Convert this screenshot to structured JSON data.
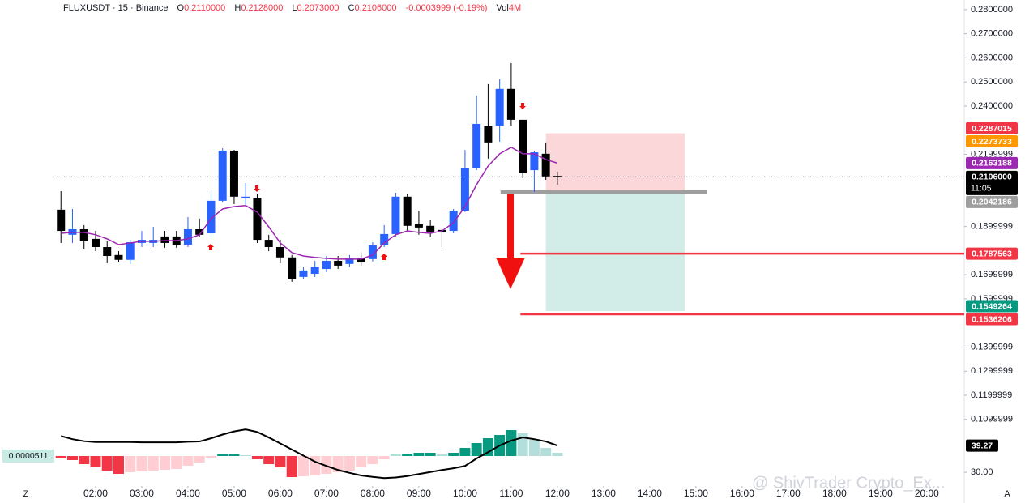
{
  "chart_data": {
    "type": "candlestick",
    "header": {
      "symbol": "FLUXUSDT",
      "sep1": "·",
      "interval": "15",
      "sep2": "·",
      "exchange": "Binance",
      "o_label": "O",
      "o": "0.2110000",
      "h_label": "H",
      "h": "0.2128000",
      "l_label": "L",
      "l": "0.2073000",
      "c_label": "C",
      "c": "0.2106000",
      "change": "-0.0003999 (-0.19%)",
      "vol_label": "Vol",
      "vol": "4M"
    },
    "up_color": "#2962ff",
    "down_color": "#000000",
    "candles": {
      "x": [
        1.25,
        1.5,
        1.75,
        2,
        2.25,
        2.5,
        2.75,
        3,
        3.25,
        3.5,
        3.75,
        4,
        4.25,
        4.5,
        4.75,
        5,
        5.25,
        5.5,
        5.75,
        6,
        6.25,
        6.5,
        6.75,
        7,
        7.25,
        7.5,
        7.75,
        8,
        8.25,
        8.5,
        8.75,
        9,
        9.25,
        9.5,
        9.75,
        10,
        10.25,
        10.5,
        10.75,
        11,
        11.25,
        11.5,
        11.75,
        12
      ],
      "open": [
        0.197,
        0.1866,
        0.1889,
        0.1849,
        0.1815,
        0.1782,
        0.1762,
        0.1832,
        0.1832,
        0.1859,
        0.1859,
        0.1825,
        0.1889,
        0.1872,
        0.2007,
        0.2215,
        0.2017,
        0.202,
        0.1845,
        0.1815,
        0.1772,
        0.1691,
        0.1704,
        0.1724,
        0.1758,
        0.1745,
        0.1768,
        0.1765,
        0.1822,
        0.1869,
        0.2024,
        0.1909,
        0.1903,
        0.1886,
        0.1882,
        0.1966,
        0.2141,
        0.2319,
        0.2319,
        0.2471,
        0.2343,
        0.2134,
        0.2202,
        0.211
      ],
      "high": [
        0.2047,
        0.1973,
        0.1906,
        0.1882,
        0.1839,
        0.1798,
        0.1845,
        0.1882,
        0.1899,
        0.1882,
        0.1882,
        0.1939,
        0.1933,
        0.205,
        0.2225,
        0.2218,
        0.2081,
        0.2034,
        0.1866,
        0.1845,
        0.1782,
        0.1731,
        0.1758,
        0.1778,
        0.1778,
        0.1782,
        0.1792,
        0.1835,
        0.1906,
        0.204,
        0.2034,
        0.1966,
        0.1926,
        0.1889,
        0.1973,
        0.2218,
        0.2444,
        0.2491,
        0.2511,
        0.2578,
        0.2343,
        0.2215,
        0.2249,
        0.2128
      ],
      "low": [
        0.1832,
        0.1832,
        0.1805,
        0.1798,
        0.1748,
        0.1751,
        0.1745,
        0.1815,
        0.1815,
        0.1812,
        0.1812,
        0.1815,
        0.1859,
        0.1859,
        0.2,
        0.1993,
        0.199,
        0.1832,
        0.1798,
        0.1748,
        0.1671,
        0.1684,
        0.1691,
        0.1711,
        0.1724,
        0.1731,
        0.1738,
        0.1755,
        0.1815,
        0.1859,
        0.1882,
        0.1866,
        0.1859,
        0.1815,
        0.1872,
        0.196,
        0.2134,
        0.2182,
        0.2252,
        0.2319,
        0.2101,
        0.2044,
        0.2094,
        0.2073
      ],
      "close": [
        0.1882,
        0.1889,
        0.1839,
        0.1815,
        0.1778,
        0.1762,
        0.1835,
        0.1845,
        0.1845,
        0.1832,
        0.1825,
        0.1889,
        0.1866,
        0.2007,
        0.2215,
        0.2024,
        0.2024,
        0.1845,
        0.1815,
        0.1772,
        0.1681,
        0.1718,
        0.1731,
        0.1758,
        0.1738,
        0.1768,
        0.1751,
        0.1822,
        0.1869,
        0.2024,
        0.1903,
        0.1896,
        0.1879,
        0.1876,
        0.1966,
        0.2141,
        0.2326,
        0.2249,
        0.2471,
        0.2343,
        0.2124,
        0.2208,
        0.2108,
        0.2106
      ]
    },
    "ma": {
      "color": "#9c27b0",
      "values": [
        0.1872,
        0.1876,
        0.1876,
        0.1866,
        0.1849,
        0.1825,
        0.1832,
        0.1839,
        0.1839,
        0.1842,
        0.1842,
        0.1849,
        0.1866,
        0.1933,
        0.1973,
        0.1983,
        0.1987,
        0.196,
        0.1899,
        0.1832,
        0.1792,
        0.1778,
        0.1772,
        0.1768,
        0.1765,
        0.1765,
        0.1765,
        0.1782,
        0.1832,
        0.1866,
        0.1882,
        0.1876,
        0.1872,
        0.1882,
        0.1916,
        0.1983,
        0.2074,
        0.2151,
        0.2202,
        0.2229,
        0.2202,
        0.2202,
        0.2178,
        0.2163188
      ]
    },
    "xlim": [
      -0.07,
      20.81
    ],
    "xticks": [
      {
        "value": 2,
        "label": "02:00"
      },
      {
        "value": 3,
        "label": "03:00"
      },
      {
        "value": 4,
        "label": "04:00"
      },
      {
        "value": 5,
        "label": "05:00"
      },
      {
        "value": 6,
        "label": "06:00"
      },
      {
        "value": 7,
        "label": "07:00"
      },
      {
        "value": 8,
        "label": "08:00"
      },
      {
        "value": 9,
        "label": "09:00"
      },
      {
        "value": 10,
        "label": "10:00"
      },
      {
        "value": 11,
        "label": "11:00"
      },
      {
        "value": 12,
        "label": "12:00"
      },
      {
        "value": 13,
        "label": "13:00"
      },
      {
        "value": 14,
        "label": "14:00"
      },
      {
        "value": 15,
        "label": "15:00"
      },
      {
        "value": 16,
        "label": "16:00"
      },
      {
        "value": 17,
        "label": "17:00"
      },
      {
        "value": 18,
        "label": "18:00"
      },
      {
        "value": 19,
        "label": "19:00"
      },
      {
        "value": 20,
        "label": "20:00"
      }
    ],
    "ylim": [
      0.1,
      0.284
    ],
    "yticks": [
      {
        "value": 0.28,
        "label": "0.2800000"
      },
      {
        "value": 0.27,
        "label": "0.2700000"
      },
      {
        "value": 0.26,
        "label": "0.2600000"
      },
      {
        "value": 0.25,
        "label": "0.2500000"
      },
      {
        "value": 0.24,
        "label": "0.2400000"
      },
      0.2199999,
      0.1899999,
      0.1699999,
      0.1599999,
      0.1399999,
      0.1299999,
      0.1199999,
      0.1099999
    ],
    "levels": [
      {
        "value": 0.2287015,
        "label": "0.2287015",
        "color": "#f23645"
      },
      {
        "value": 0.2273733,
        "label": "0.2273733",
        "color": "#ff9800"
      },
      {
        "value": 0.2163188,
        "label": "0.2163188",
        "color": "#9c27b0"
      },
      {
        "value": 0.2106,
        "label": "0.2106000",
        "color": "#000000",
        "countdown": "11:05"
      },
      {
        "value": 0.2042186,
        "label": "0.2042186",
        "color": "#9e9e9e",
        "line": [
          10.77,
          15.23
        ]
      },
      {
        "value": 0.1787563,
        "label": "0.1787563",
        "color": "#f23645",
        "line": [
          11.2,
          20.81
        ]
      },
      {
        "value": 0.1549264,
        "label": "0.1549264",
        "color": "#089981"
      },
      {
        "value": 0.1536206,
        "label": "0.1536206",
        "color": "#f23645",
        "line": [
          11.2,
          20.81
        ]
      }
    ],
    "position": {
      "x": [
        11.75,
        14.76
      ],
      "entry": 0.2042186,
      "stop": 0.2287015,
      "target": 0.1549264
    },
    "oscillator": {
      "macd_label": "0.0000511",
      "ylim": [
        -0.004,
        0.004
      ],
      "histogram": [
        -0.0003,
        -0.0005,
        -0.001,
        -0.0014,
        -0.0018,
        -0.0022,
        -0.002,
        -0.0019,
        -0.0018,
        -0.0017,
        -0.0016,
        -0.0012,
        -0.0008,
        -0.0002,
        0.0002,
        0.0002,
        0.0001,
        -0.0004,
        -0.001,
        -0.0014,
        -0.0026,
        -0.0025,
        -0.0024,
        -0.0022,
        -0.002,
        -0.0018,
        -0.0014,
        -0.001,
        -0.0004,
        0.0002,
        0.0003,
        0.0004,
        0.0004,
        0.0003,
        0.0004,
        0.001,
        0.0016,
        0.0022,
        0.0026,
        0.0032,
        0.0028,
        0.002,
        0.001,
        0.0004
      ],
      "y2lim": [
        24.4,
        46.9
      ],
      "y2ticks": [
        {
          "value": 30,
          "label": "30.00"
        }
      ],
      "line": {
        "color": "#000000",
        "values": [
          42.6,
          41.5,
          40.8,
          40.5,
          40.5,
          40.5,
          40.5,
          40.4,
          40.4,
          40.4,
          40.4,
          40.6,
          40.7,
          41.8,
          43.1,
          44.2,
          44.9,
          44.0,
          42.1,
          40.0,
          37.9,
          35.8,
          33.7,
          32.2,
          30.8,
          29.8,
          28.9,
          28.4,
          28.0,
          28.2,
          28.7,
          29.4,
          30.1,
          30.8,
          31.4,
          32.2,
          34.8,
          37.0,
          39.3,
          41.0,
          42.1,
          41.5,
          40.7,
          39.27
        ]
      }
    },
    "corner_left": "Z",
    "corner_right": "A",
    "watermark": "@ ShivTrader Crypto_Ex..."
  }
}
